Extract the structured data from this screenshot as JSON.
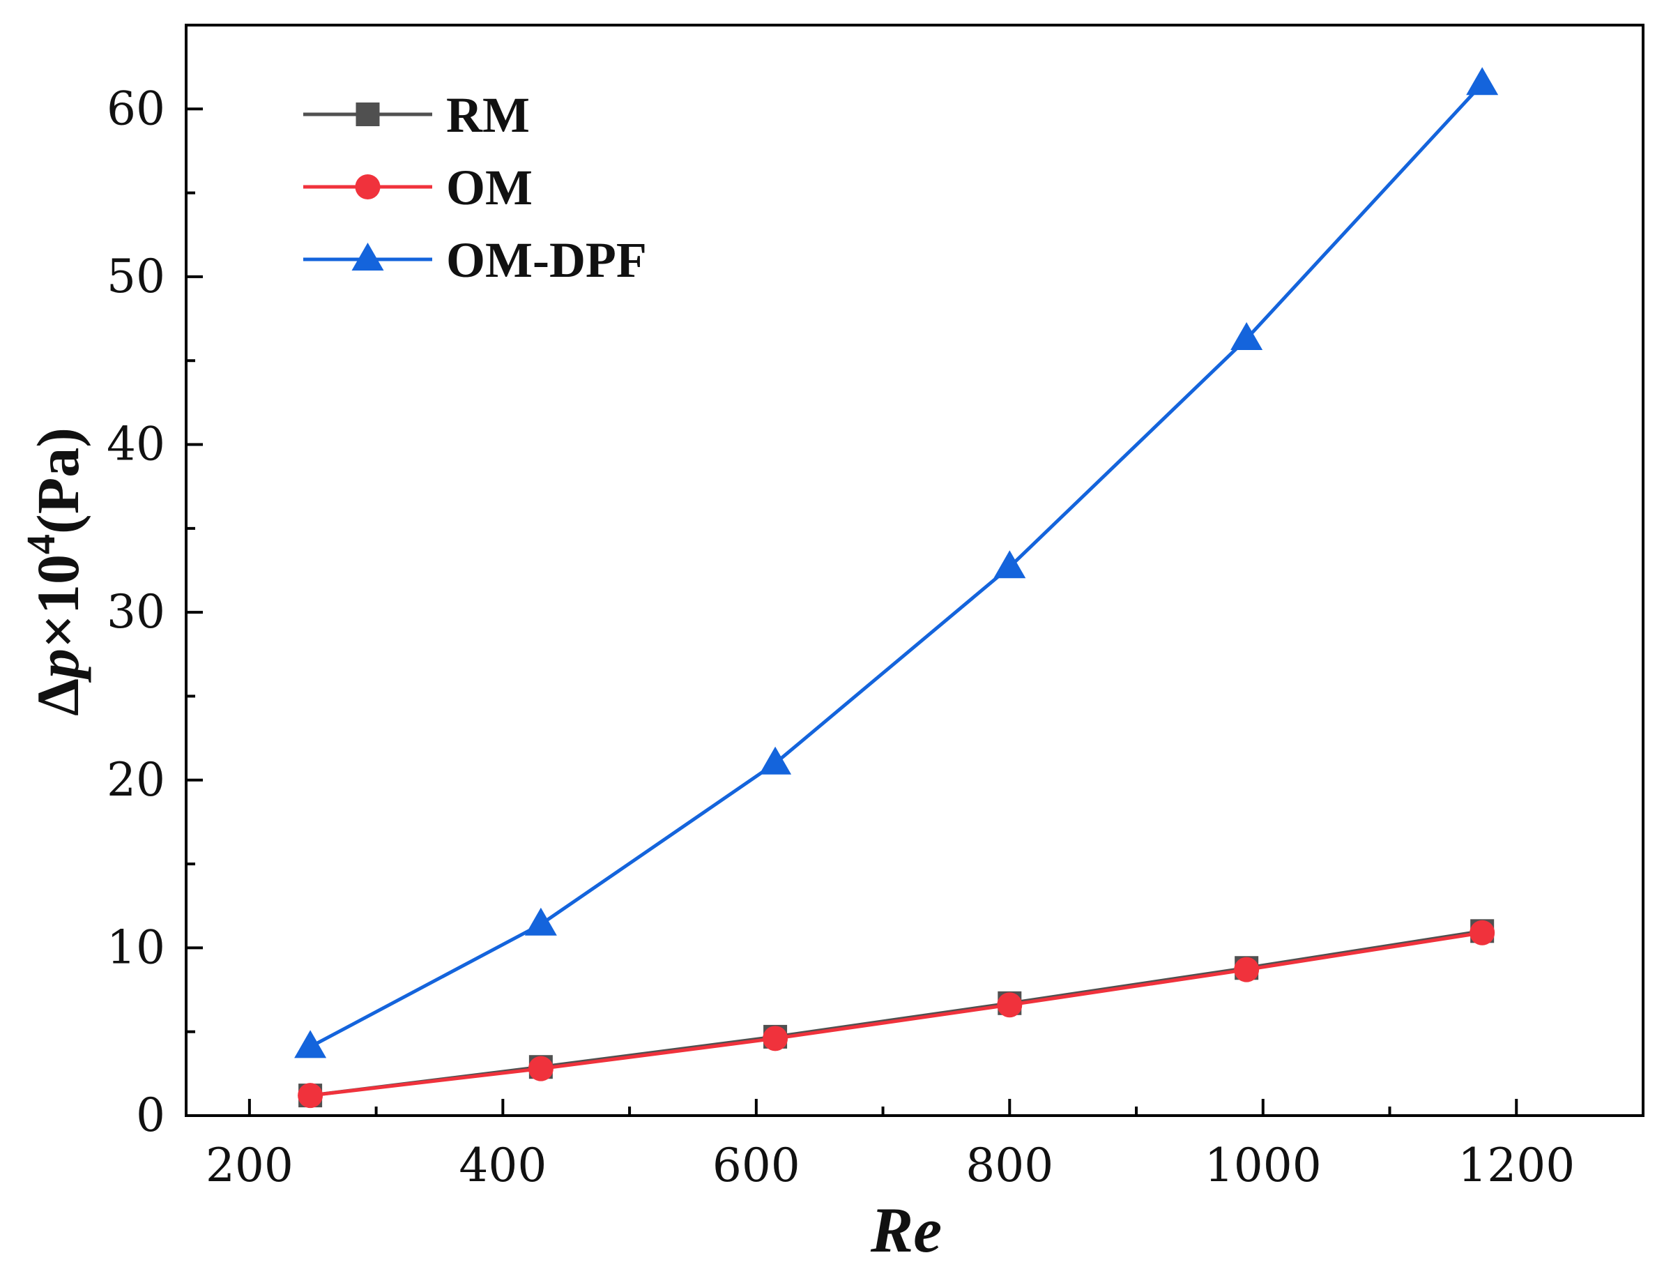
{
  "chart_data": {
    "type": "line",
    "xlabel": "Re",
    "ylabel": {
      "delta": "Δ",
      "var": "p",
      "times": "×10",
      "exp": "4",
      "unit": "(Pa)"
    },
    "xlim": [
      150,
      1300
    ],
    "ylim": [
      0,
      65
    ],
    "xticks": [
      200,
      400,
      600,
      800,
      1000,
      1200
    ],
    "yticks": [
      0,
      10,
      20,
      30,
      40,
      50,
      60
    ],
    "grid": false,
    "legend_position": "top-left",
    "series": [
      {
        "name": "RM",
        "marker": "square",
        "color": "#505050",
        "x": [
          248,
          430,
          615,
          800,
          987,
          1173
        ],
        "y": [
          1.2,
          2.9,
          4.7,
          6.7,
          8.8,
          11.0
        ]
      },
      {
        "name": "OM",
        "marker": "circle",
        "color": "#f0323c",
        "x": [
          248,
          430,
          615,
          800,
          987,
          1173
        ],
        "y": [
          1.2,
          2.8,
          4.6,
          6.6,
          8.7,
          10.9
        ]
      },
      {
        "name": "OM-DPF",
        "marker": "triangle",
        "color": "#1464dc",
        "x": [
          248,
          430,
          615,
          800,
          987,
          1173
        ],
        "y": [
          4.1,
          11.4,
          21.0,
          32.7,
          46.3,
          61.5
        ]
      }
    ]
  }
}
